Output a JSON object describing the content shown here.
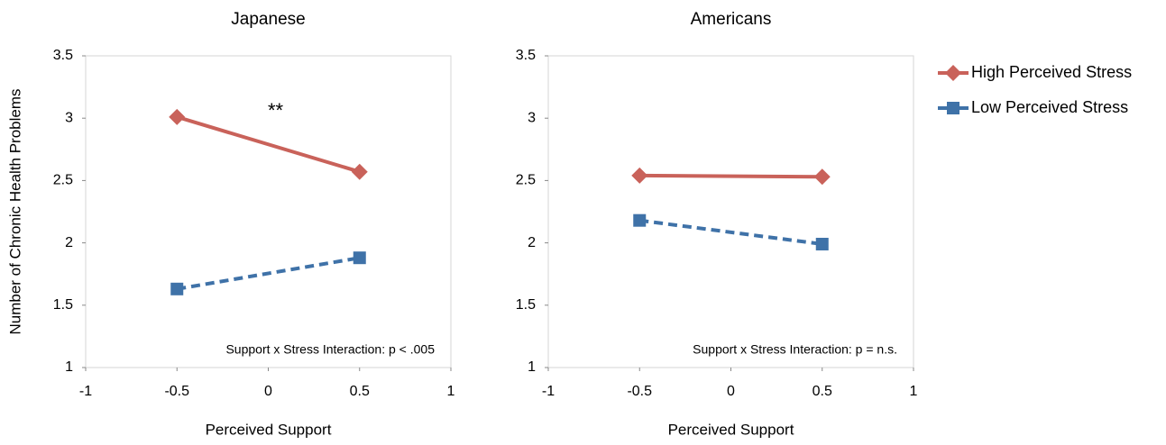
{
  "chart_data": [
    {
      "type": "line",
      "title": "Japanese",
      "y_label": "Number of Chronic Health Problems",
      "x_label": "Perceived Support",
      "x": [
        -0.5,
        0.5
      ],
      "series": [
        {
          "name": "High Perceived Stress",
          "color": "#c9625a",
          "marker": "diamond",
          "linestyle": "solid",
          "values": [
            3.01,
            2.57
          ]
        },
        {
          "name": "Low Perceived Stress",
          "color": "#3f72a8",
          "marker": "square",
          "linestyle": "dashed",
          "values": [
            1.63,
            1.88
          ]
        }
      ],
      "xlim": [
        -1,
        1
      ],
      "xticks": [
        -1,
        -0.5,
        0,
        0.5,
        1
      ],
      "ylim": [
        1,
        3.5
      ],
      "yticks": [
        1,
        1.5,
        2,
        2.5,
        3,
        3.5
      ],
      "annotations": [
        "**",
        "Support x Stress Interaction: p < .005"
      ],
      "legend": "right"
    },
    {
      "type": "line",
      "title": "Americans",
      "x_label": "Perceived Support",
      "x": [
        -0.5,
        0.5
      ],
      "series": [
        {
          "color": "#c9625a",
          "marker": "diamond",
          "linestyle": "solid",
          "values": [
            2.54,
            2.53
          ]
        },
        {
          "color": "#3f72a8",
          "marker": "square",
          "linestyle": "dashed",
          "values": [
            2.18,
            1.99
          ]
        }
      ],
      "xlim": [
        -1,
        1
      ],
      "xticks": [
        -1,
        -0.5,
        0,
        0.5,
        1
      ],
      "ylim": [
        1,
        3.5
      ],
      "yticks": [
        1,
        1.5,
        2,
        2.5,
        3,
        3.5
      ],
      "annotations": [
        "Support x Stress Interaction: p = n.s."
      ]
    }
  ]
}
